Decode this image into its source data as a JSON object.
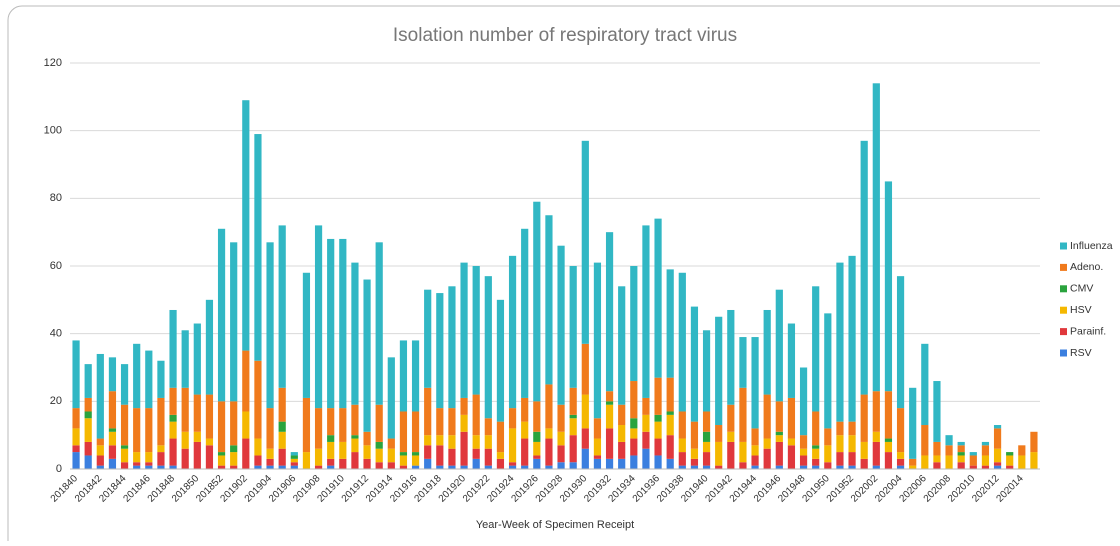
{
  "chart_data": {
    "type": "stacked_bar",
    "title": "Isolation number of respiratory tract virus",
    "x_label": "Year-Week of Specimen Receipt",
    "categories": [
      "201840",
      null,
      "201842",
      null,
      "201844",
      null,
      "201846",
      null,
      "201848",
      null,
      "201850",
      null,
      "201852",
      null,
      "201902",
      null,
      "201904",
      null,
      "201906",
      null,
      "201908",
      null,
      "201910",
      null,
      "201912",
      null,
      "201914",
      null,
      "201916",
      null,
      "201918",
      null,
      "201920",
      null,
      "201922",
      null,
      "201924",
      null,
      "201926",
      null,
      "201928",
      null,
      "201930",
      null,
      "201932",
      null,
      "201934",
      null,
      "201936",
      null,
      "201938",
      null,
      "201940",
      null,
      "201942",
      null,
      "201944",
      null,
      "201946",
      null,
      "201948",
      null,
      "201950",
      null,
      "201952",
      null,
      "202002",
      null,
      "202004",
      null,
      "202006",
      null,
      "202008",
      null,
      "202010",
      null,
      "202012",
      null,
      "202014",
      null
    ],
    "series": [
      {
        "name": "RSV",
        "color": "#3b7fdf",
        "values": [
          5,
          4,
          1,
          3,
          0,
          1,
          1,
          1,
          1,
          0,
          0,
          0,
          0,
          0,
          0,
          1,
          1,
          1,
          1,
          0,
          0,
          1,
          0,
          0,
          0,
          0,
          0,
          0,
          1,
          3,
          1,
          1,
          1,
          3,
          1,
          0,
          1,
          1,
          3,
          1,
          2,
          2,
          6,
          3,
          3,
          3,
          4,
          6,
          4,
          3,
          1,
          1,
          1,
          0,
          0,
          0,
          1,
          0,
          1,
          0,
          1,
          1,
          0,
          1,
          1,
          0,
          1,
          0,
          1,
          0,
          0,
          0,
          0,
          0,
          0,
          0,
          1,
          0,
          0,
          0
        ]
      },
      {
        "name": "Parainf.",
        "color": "#e0383c",
        "values": [
          2,
          4,
          3,
          4,
          2,
          1,
          1,
          4,
          8,
          6,
          8,
          7,
          1,
          1,
          9,
          3,
          2,
          5,
          1,
          0,
          1,
          2,
          3,
          5,
          3,
          2,
          2,
          1,
          0,
          4,
          6,
          5,
          10,
          3,
          5,
          3,
          1,
          8,
          1,
          8,
          5,
          8,
          6,
          1,
          9,
          5,
          5,
          5,
          5,
          7,
          4,
          2,
          4,
          1,
          8,
          2,
          3,
          6,
          7,
          7,
          3,
          2,
          2,
          4,
          4,
          3,
          7,
          5,
          2,
          0,
          0,
          2,
          0,
          2,
          1,
          1,
          1,
          1,
          0,
          0
        ]
      },
      {
        "name": "HSV",
        "color": "#f5b800",
        "values": [
          5,
          7,
          3,
          4,
          4,
          3,
          3,
          2,
          5,
          5,
          3,
          2,
          3,
          4,
          8,
          5,
          3,
          5,
          1,
          5,
          5,
          5,
          5,
          4,
          4,
          4,
          4,
          3,
          3,
          3,
          3,
          4,
          5,
          4,
          4,
          2,
          10,
          5,
          4,
          3,
          4,
          5,
          10,
          5,
          7,
          5,
          3,
          5,
          5,
          6,
          4,
          3,
          3,
          7,
          3,
          6,
          3,
          3,
          2,
          2,
          2,
          3,
          5,
          5,
          5,
          5,
          3,
          3,
          2,
          1,
          4,
          2,
          4,
          2,
          0,
          3,
          4,
          3,
          4,
          5
        ]
      },
      {
        "name": "CMV",
        "color": "#2aa33d",
        "values": [
          0,
          2,
          0,
          1,
          1,
          0,
          0,
          0,
          2,
          0,
          0,
          0,
          1,
          2,
          0,
          0,
          0,
          3,
          1,
          0,
          0,
          2,
          0,
          1,
          0,
          2,
          0,
          1,
          1,
          0,
          0,
          0,
          0,
          0,
          0,
          0,
          0,
          0,
          3,
          0,
          0,
          1,
          0,
          0,
          1,
          0,
          3,
          0,
          2,
          1,
          0,
          0,
          3,
          0,
          0,
          0,
          0,
          0,
          1,
          0,
          0,
          1,
          0,
          0,
          0,
          0,
          0,
          1,
          0,
          0,
          0,
          0,
          0,
          1,
          0,
          0,
          0,
          1,
          0,
          0
        ]
      },
      {
        "name": "Adeno.",
        "color": "#f07a1c",
        "values": [
          6,
          4,
          2,
          11,
          12,
          13,
          13,
          14,
          8,
          13,
          11,
          13,
          15,
          13,
          18,
          23,
          12,
          10,
          0,
          16,
          12,
          8,
          10,
          9,
          4,
          11,
          3,
          12,
          12,
          14,
          8,
          8,
          5,
          12,
          5,
          9,
          6,
          7,
          9,
          13,
          8,
          8,
          15,
          6,
          3,
          6,
          11,
          5,
          11,
          10,
          8,
          8,
          6,
          5,
          8,
          16,
          5,
          13,
          9,
          12,
          4,
          10,
          5,
          4,
          4,
          14,
          12,
          14,
          13,
          2,
          9,
          4,
          3,
          2,
          3,
          3,
          6,
          0,
          3,
          6
        ]
      },
      {
        "name": "Influenza",
        "color": "#31b7c4",
        "values": [
          20,
          10,
          25,
          10,
          12,
          19,
          17,
          11,
          23,
          17,
          21,
          28,
          51,
          47,
          74,
          67,
          49,
          48,
          1,
          37,
          54,
          50,
          50,
          42,
          45,
          48,
          24,
          21,
          21,
          29,
          34,
          36,
          40,
          38,
          42,
          36,
          45,
          50,
          59,
          50,
          47,
          36,
          60,
          46,
          47,
          35,
          34,
          51,
          47,
          32,
          41,
          34,
          24,
          32,
          28,
          15,
          27,
          25,
          33,
          22,
          20,
          37,
          34,
          47,
          49,
          75,
          91,
          62,
          39,
          21,
          24,
          18,
          3,
          1,
          1,
          1,
          1,
          0,
          0,
          0
        ]
      }
    ],
    "ylim": [
      0,
      120
    ],
    "yticks": [
      0,
      20,
      40,
      60,
      80,
      100,
      120
    ],
    "grid": true,
    "legend": "right"
  }
}
